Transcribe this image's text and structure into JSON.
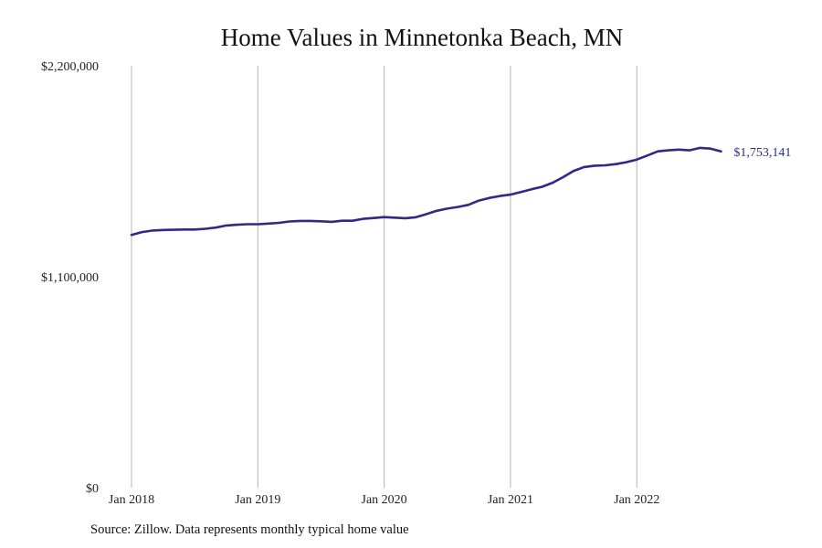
{
  "chart_data": {
    "type": "line",
    "title": "Home Values in Minnetonka Beach, MN",
    "xlabel": "",
    "ylabel": "",
    "ylim": [
      0,
      2200000
    ],
    "xlim": [
      "2018-01",
      "2022-12"
    ],
    "x_tick_labels": [
      "Jan 2018",
      "Jan 2019",
      "Jan 2020",
      "Jan 2021",
      "Jan 2022"
    ],
    "y_tick_labels": [
      "$0",
      "$1,100,000",
      "$2,200,000"
    ],
    "y_ticks": [
      0,
      1100000,
      2200000
    ],
    "grid": "vertical",
    "legend": "none",
    "end_label": "$1,753,141",
    "line_color": "#2e2a86",
    "series": [
      {
        "x": [
          "2018-01",
          "2018-02",
          "2018-03",
          "2018-04",
          "2018-05",
          "2018-06",
          "2018-07",
          "2018-08",
          "2018-09",
          "2018-10",
          "2018-11",
          "2018-12",
          "2019-01",
          "2019-02",
          "2019-03",
          "2019-04",
          "2019-05",
          "2019-06",
          "2019-07",
          "2019-08",
          "2019-09",
          "2019-10",
          "2019-11",
          "2019-12",
          "2020-01",
          "2020-02",
          "2020-03",
          "2020-04",
          "2020-05",
          "2020-06",
          "2020-07",
          "2020-08",
          "2020-09",
          "2020-10",
          "2020-11",
          "2020-12",
          "2021-01",
          "2021-02",
          "2021-03",
          "2021-04",
          "2021-05",
          "2021-06",
          "2021-07",
          "2021-08",
          "2021-09",
          "2021-10",
          "2021-11",
          "2021-12",
          "2022-01",
          "2022-02",
          "2022-03",
          "2022-04",
          "2022-05",
          "2022-06",
          "2022-07",
          "2022-08",
          "2022-09"
        ],
        "values": [
          1318000,
          1333000,
          1341000,
          1344000,
          1345000,
          1346000,
          1346000,
          1350000,
          1356000,
          1367000,
          1371000,
          1374000,
          1374000,
          1377000,
          1381000,
          1388000,
          1391000,
          1391000,
          1389000,
          1386000,
          1392000,
          1392000,
          1402000,
          1406000,
          1411000,
          1408000,
          1405000,
          1410000,
          1426000,
          1444000,
          1455000,
          1464000,
          1475000,
          1497000,
          1511000,
          1521000,
          1528000,
          1542000,
          1556000,
          1569000,
          1590000,
          1619000,
          1652000,
          1672000,
          1679000,
          1681000,
          1687000,
          1697000,
          1711000,
          1732000,
          1754000,
          1759000,
          1763000,
          1759000,
          1772000,
          1768000,
          1753141
        ]
      }
    ]
  },
  "source_note": "Source: Zillow. Data represents monthly typical home value"
}
